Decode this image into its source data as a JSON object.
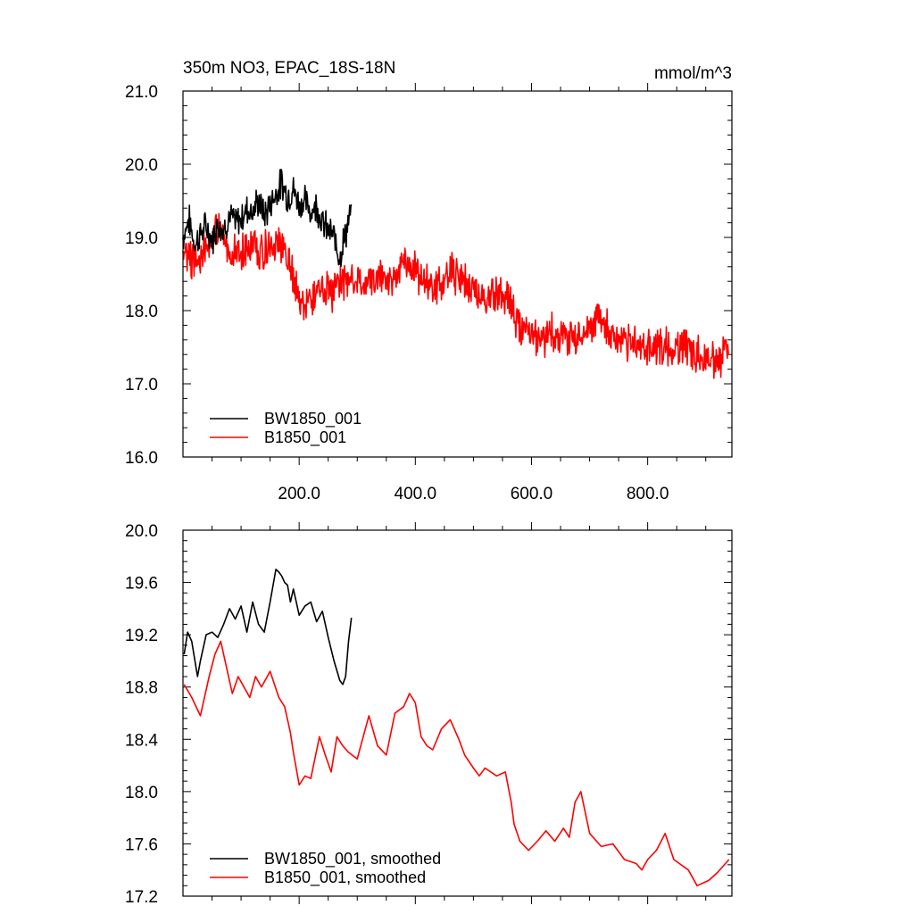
{
  "chart_data": [
    {
      "type": "line",
      "title": "350m NO3, EPAC_18S-18N",
      "units_label": "mmol/m^3",
      "xlim": [
        0,
        945
      ],
      "ylim": [
        16.0,
        21.0
      ],
      "x_ticks": [
        200,
        400,
        600,
        800
      ],
      "x_tick_labels": [
        "200.0",
        "400.0",
        "600.0",
        "800.0"
      ],
      "y_ticks": [
        16.0,
        17.0,
        18.0,
        19.0,
        20.0,
        21.0
      ],
      "y_tick_labels": [
        "16.0",
        "17.0",
        "18.0",
        "19.0",
        "20.0",
        "21.0"
      ],
      "legend_position": "bottom-left",
      "grid": false,
      "series": [
        {
          "name": "BW1850_001",
          "color": "#000000",
          "x": [
            0,
            10,
            20,
            30,
            40,
            50,
            60,
            70,
            80,
            90,
            100,
            110,
            120,
            130,
            140,
            150,
            160,
            170,
            180,
            190,
            200,
            210,
            220,
            230,
            240,
            250,
            260,
            270,
            280,
            290
          ],
          "y": [
            19.0,
            19.25,
            18.9,
            19.05,
            19.15,
            18.95,
            19.2,
            19.1,
            19.3,
            19.2,
            19.25,
            19.4,
            19.35,
            19.5,
            19.3,
            19.45,
            19.6,
            19.75,
            19.55,
            19.65,
            19.45,
            19.5,
            19.35,
            19.45,
            19.2,
            19.1,
            19.0,
            18.75,
            19.05,
            19.35
          ]
        },
        {
          "name": "B1850_001",
          "color": "#ff0000",
          "x": [
            0,
            20,
            40,
            60,
            80,
            100,
            120,
            140,
            160,
            180,
            200,
            220,
            240,
            260,
            280,
            300,
            320,
            340,
            360,
            380,
            400,
            420,
            440,
            460,
            480,
            500,
            520,
            540,
            560,
            580,
            600,
            620,
            640,
            660,
            680,
            700,
            720,
            740,
            760,
            780,
            800,
            820,
            840,
            860,
            880,
            900,
            920,
            940
          ],
          "y": [
            18.8,
            18.65,
            18.9,
            19.1,
            18.8,
            18.75,
            18.9,
            18.8,
            18.9,
            18.75,
            18.1,
            18.15,
            18.3,
            18.25,
            18.45,
            18.35,
            18.4,
            18.5,
            18.35,
            18.7,
            18.55,
            18.35,
            18.3,
            18.55,
            18.45,
            18.3,
            18.15,
            18.2,
            18.15,
            17.75,
            17.6,
            17.65,
            17.7,
            17.65,
            17.65,
            17.8,
            17.95,
            17.65,
            17.55,
            17.55,
            17.45,
            17.55,
            17.45,
            17.55,
            17.4,
            17.4,
            17.35,
            17.45
          ]
        }
      ]
    },
    {
      "type": "line",
      "xlim": [
        0,
        945
      ],
      "ylim": [
        17.2,
        20.0
      ],
      "x_ticks": [
        200,
        400,
        600,
        800
      ],
      "y_ticks": [
        17.2,
        17.6,
        18.0,
        18.4,
        18.8,
        19.2,
        19.6,
        20.0
      ],
      "y_tick_labels": [
        "17.2",
        "17.6",
        "18.0",
        "18.4",
        "18.8",
        "19.2",
        "19.6",
        "20.0"
      ],
      "legend_position": "bottom-left",
      "grid": false,
      "series": [
        {
          "name": "BW1850_001, smoothed",
          "color": "#000000",
          "x": [
            2,
            8,
            15,
            25,
            30,
            40,
            50,
            60,
            70,
            80,
            90,
            100,
            110,
            120,
            130,
            140,
            150,
            160,
            165,
            170,
            175,
            180,
            185,
            190,
            200,
            210,
            220,
            230,
            240,
            250,
            260,
            270,
            275,
            280,
            285,
            290
          ],
          "y": [
            19.05,
            19.22,
            19.15,
            18.88,
            19.0,
            19.2,
            19.22,
            19.18,
            19.28,
            19.4,
            19.32,
            19.42,
            19.22,
            19.45,
            19.28,
            19.22,
            19.45,
            19.7,
            19.68,
            19.65,
            19.6,
            19.58,
            19.45,
            19.55,
            19.35,
            19.42,
            19.45,
            19.3,
            19.38,
            19.18,
            19.0,
            18.85,
            18.82,
            18.88,
            19.15,
            19.33
          ]
        },
        {
          "name": "B1850_001, smoothed",
          "color": "#ff0000",
          "x": [
            2,
            15,
            30,
            45,
            55,
            65,
            75,
            85,
            95,
            105,
            115,
            125,
            135,
            150,
            165,
            175,
            185,
            190,
            200,
            210,
            220,
            235,
            245,
            255,
            265,
            275,
            285,
            300,
            320,
            335,
            350,
            365,
            380,
            390,
            400,
            410,
            420,
            430,
            445,
            460,
            475,
            485,
            500,
            510,
            520,
            540,
            555,
            565,
            570,
            580,
            595,
            610,
            625,
            640,
            655,
            665,
            675,
            685,
            700,
            720,
            740,
            760,
            780,
            790,
            800,
            815,
            830,
            845,
            870,
            885,
            905,
            920,
            940
          ],
          "y": [
            18.82,
            18.72,
            18.58,
            18.88,
            19.05,
            19.15,
            18.95,
            18.75,
            18.88,
            18.8,
            18.72,
            18.88,
            18.8,
            18.92,
            18.72,
            18.65,
            18.45,
            18.3,
            18.05,
            18.12,
            18.1,
            18.42,
            18.28,
            18.15,
            18.42,
            18.35,
            18.3,
            18.25,
            18.58,
            18.35,
            18.28,
            18.6,
            18.65,
            18.75,
            18.68,
            18.42,
            18.35,
            18.32,
            18.48,
            18.55,
            18.4,
            18.28,
            18.18,
            18.12,
            18.18,
            18.12,
            18.15,
            17.92,
            17.75,
            17.62,
            17.55,
            17.62,
            17.7,
            17.62,
            17.72,
            17.65,
            17.92,
            18.0,
            17.68,
            17.58,
            17.6,
            17.48,
            17.45,
            17.4,
            17.48,
            17.55,
            17.68,
            17.48,
            17.4,
            17.28,
            17.32,
            17.38,
            17.48
          ]
        }
      ]
    }
  ]
}
